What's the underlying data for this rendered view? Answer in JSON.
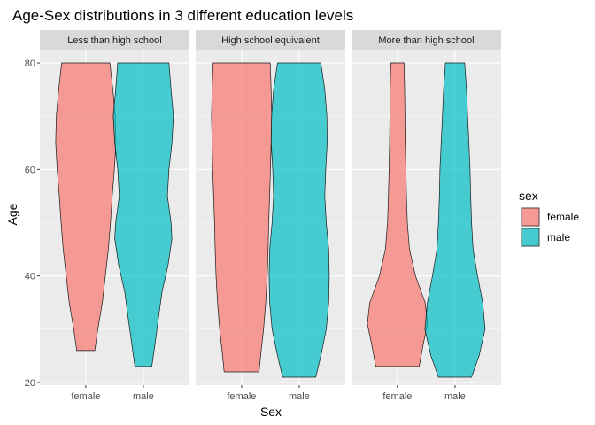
{
  "chart_data": {
    "type": "violin",
    "title": "Age-Sex distributions in 3 different education levels",
    "xlabel": "Sex",
    "ylabel": "Age",
    "ylim": [
      19.5,
      82.5
    ],
    "yticks": [
      20,
      40,
      60,
      80
    ],
    "categories": [
      "female",
      "male"
    ],
    "grid": true,
    "legend": {
      "title": "sex",
      "position": "right",
      "items": [
        {
          "label": "female",
          "color": "#F8766D"
        },
        {
          "label": "male",
          "color": "#00BFC4"
        }
      ]
    },
    "facets": [
      {
        "label": "Less than high school",
        "violins": [
          {
            "category": "female",
            "min": 26,
            "max": 80,
            "profile": [
              [
                26,
                0.3
              ],
              [
                30,
                0.4
              ],
              [
                35,
                0.55
              ],
              [
                40,
                0.65
              ],
              [
                45,
                0.75
              ],
              [
                50,
                0.82
              ],
              [
                55,
                0.88
              ],
              [
                60,
                0.95
              ],
              [
                65,
                1.0
              ],
              [
                70,
                0.98
              ],
              [
                75,
                0.9
              ],
              [
                80,
                0.8
              ]
            ]
          },
          {
            "category": "male",
            "min": 23,
            "max": 80,
            "profile": [
              [
                23,
                0.28
              ],
              [
                27,
                0.38
              ],
              [
                32,
                0.5
              ],
              [
                37,
                0.62
              ],
              [
                42,
                0.82
              ],
              [
                47,
                0.95
              ],
              [
                50,
                0.92
              ],
              [
                55,
                0.8
              ],
              [
                60,
                0.85
              ],
              [
                65,
                0.95
              ],
              [
                70,
                1.0
              ],
              [
                75,
                0.92
              ],
              [
                80,
                0.85
              ]
            ]
          }
        ]
      },
      {
        "label": "High school equivalent",
        "violins": [
          {
            "category": "female",
            "min": 22,
            "max": 80,
            "profile": [
              [
                22,
                0.58
              ],
              [
                26,
                0.65
              ],
              [
                30,
                0.73
              ],
              [
                35,
                0.8
              ],
              [
                40,
                0.85
              ],
              [
                45,
                0.88
              ],
              [
                50,
                0.9
              ],
              [
                55,
                0.93
              ],
              [
                60,
                0.96
              ],
              [
                65,
                0.98
              ],
              [
                70,
                1.0
              ],
              [
                75,
                0.98
              ],
              [
                80,
                0.95
              ]
            ]
          },
          {
            "category": "male",
            "min": 21,
            "max": 80,
            "profile": [
              [
                21,
                0.55
              ],
              [
                25,
                0.72
              ],
              [
                30,
                0.9
              ],
              [
                35,
                0.98
              ],
              [
                40,
                1.0
              ],
              [
                45,
                0.98
              ],
              [
                50,
                0.9
              ],
              [
                55,
                0.85
              ],
              [
                60,
                0.88
              ],
              [
                65,
                0.93
              ],
              [
                70,
                0.92
              ],
              [
                75,
                0.85
              ],
              [
                80,
                0.72
              ]
            ]
          }
        ]
      },
      {
        "label": "More than high school",
        "violins": [
          {
            "category": "female",
            "min": 23,
            "max": 80,
            "profile": [
              [
                23,
                0.72
              ],
              [
                27,
                0.85
              ],
              [
                31,
                1.0
              ],
              [
                35,
                0.92
              ],
              [
                40,
                0.6
              ],
              [
                45,
                0.4
              ],
              [
                50,
                0.33
              ],
              [
                55,
                0.3
              ],
              [
                60,
                0.28
              ],
              [
                65,
                0.26
              ],
              [
                70,
                0.25
              ],
              [
                75,
                0.24
              ],
              [
                80,
                0.22
              ]
            ]
          },
          {
            "category": "male",
            "min": 21,
            "max": 80,
            "profile": [
              [
                21,
                0.55
              ],
              [
                25,
                0.8
              ],
              [
                30,
                1.0
              ],
              [
                35,
                0.92
              ],
              [
                40,
                0.75
              ],
              [
                45,
                0.6
              ],
              [
                50,
                0.55
              ],
              [
                55,
                0.52
              ],
              [
                60,
                0.5
              ],
              [
                65,
                0.46
              ],
              [
                70,
                0.42
              ],
              [
                75,
                0.38
              ],
              [
                80,
                0.32
              ]
            ]
          }
        ]
      }
    ]
  }
}
